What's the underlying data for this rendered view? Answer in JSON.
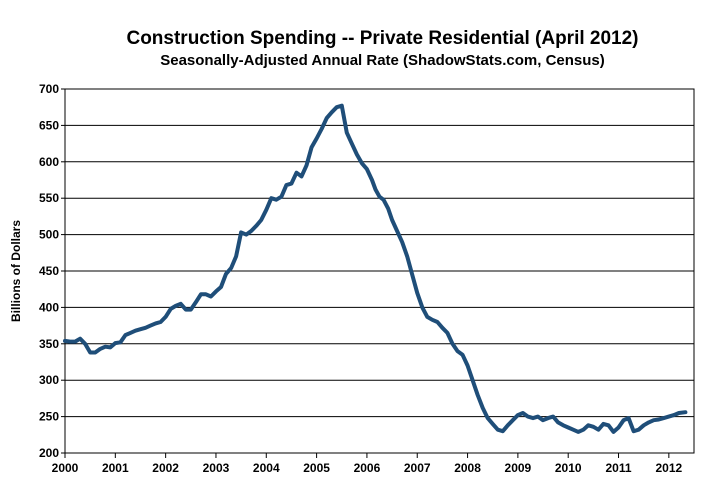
{
  "chart_data": {
    "type": "line",
    "title": "Construction Spending -- Private Residential (April 2012)",
    "subtitle": "Seasonally-Adjusted Annual Rate (ShadowStats.com, Census)",
    "xlabel": "",
    "ylabel": "Billions of Dollars",
    "xlim": [
      2000,
      2012.5
    ],
    "ylim": [
      200,
      700
    ],
    "x_ticks": [
      "2000",
      "2001",
      "2002",
      "2003",
      "2004",
      "2005",
      "2006",
      "2007",
      "2008",
      "2009",
      "2010",
      "2011",
      "2012"
    ],
    "y_ticks": [
      "200",
      "250",
      "300",
      "350",
      "400",
      "450",
      "500",
      "550",
      "600",
      "650",
      "700"
    ],
    "grid": true,
    "legend": "none",
    "line_color": "#1f4e79",
    "series": [
      {
        "x": [
          2000.0,
          2000.1,
          2000.2,
          2000.3,
          2000.4,
          2000.5,
          2000.6,
          2000.7,
          2000.8,
          2000.9,
          2001.0,
          2001.1,
          2001.2,
          2001.3,
          2001.4,
          2001.5,
          2001.6,
          2001.7,
          2001.8,
          2001.9,
          2002.0,
          2002.1,
          2002.2,
          2002.3,
          2002.4,
          2002.5,
          2002.6,
          2002.7,
          2002.8,
          2002.9,
          2003.0,
          2003.1,
          2003.2,
          2003.3,
          2003.4,
          2003.5,
          2003.6,
          2003.7,
          2003.8,
          2003.9,
          2004.0,
          2004.1,
          2004.2,
          2004.3,
          2004.4,
          2004.5,
          2004.6,
          2004.7,
          2004.8,
          2004.9,
          2005.0,
          2005.1,
          2005.2,
          2005.3,
          2005.4,
          2005.5,
          2005.6,
          2005.7,
          2005.8,
          2005.9,
          2006.0,
          2006.1,
          2006.17,
          2006.25,
          2006.33,
          2006.42,
          2006.5,
          2006.6,
          2006.7,
          2006.8,
          2006.9,
          2007.0,
          2007.1,
          2007.2,
          2007.3,
          2007.4,
          2007.5,
          2007.6,
          2007.7,
          2007.8,
          2007.9,
          2008.0,
          2008.1,
          2008.2,
          2008.3,
          2008.4,
          2008.5,
          2008.6,
          2008.7,
          2008.8,
          2008.9,
          2009.0,
          2009.1,
          2009.2,
          2009.3,
          2009.4,
          2009.5,
          2009.6,
          2009.7,
          2009.8,
          2009.9,
          2010.0,
          2010.1,
          2010.2,
          2010.3,
          2010.4,
          2010.5,
          2010.6,
          2010.7,
          2010.8,
          2010.9,
          2011.0,
          2011.1,
          2011.2,
          2011.3,
          2011.4,
          2011.5,
          2011.6,
          2011.7,
          2011.8,
          2011.9,
          2012.0,
          2012.1,
          2012.2,
          2012.33
        ],
        "values": [
          354,
          353,
          353,
          357,
          350,
          338,
          338,
          343,
          346,
          345,
          351,
          352,
          362,
          365,
          368,
          370,
          372,
          375,
          378,
          380,
          387,
          398,
          402,
          405,
          397,
          397,
          407,
          418,
          418,
          415,
          422,
          428,
          446,
          454,
          470,
          503,
          500,
          505,
          512,
          520,
          534,
          550,
          548,
          552,
          568,
          570,
          585,
          580,
          595,
          620,
          632,
          645,
          660,
          668,
          675,
          677,
          640,
          625,
          610,
          598,
          590,
          575,
          562,
          552,
          548,
          536,
          520,
          505,
          490,
          470,
          445,
          420,
          400,
          387,
          383,
          380,
          372,
          365,
          350,
          340,
          335,
          320,
          300,
          280,
          262,
          248,
          240,
          232,
          230,
          238,
          245,
          252,
          255,
          250,
          248,
          250,
          245,
          248,
          250,
          242,
          238,
          235,
          232,
          229,
          232,
          238,
          236,
          232,
          240,
          238,
          229,
          235,
          245,
          248,
          230,
          232,
          238,
          242,
          245,
          246,
          248,
          250,
          252,
          255,
          256
        ]
      }
    ]
  }
}
